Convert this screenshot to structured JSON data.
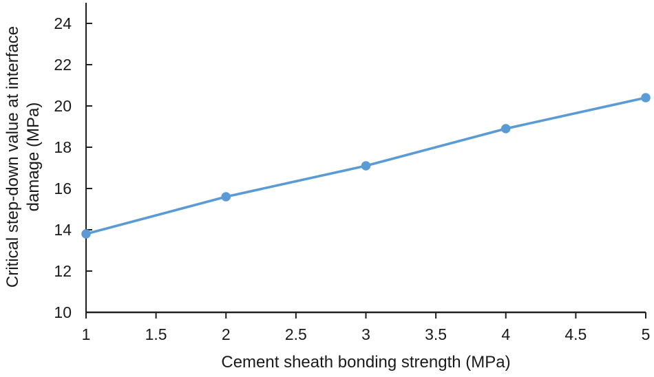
{
  "chart_data": {
    "type": "line",
    "title": "",
    "xlabel": "Cement sheath bonding strength (MPa)",
    "ylabel": "Critical step-down value at interface damage (MPa)",
    "ylabel_lines": [
      "Critical step-down value at interface",
      "damage (MPa)"
    ],
    "x": [
      1,
      2,
      3,
      4,
      5
    ],
    "series": [
      {
        "name": "Critical step-down value at interface damage",
        "values": [
          13.8,
          15.6,
          17.1,
          18.9,
          20.4
        ]
      }
    ],
    "xlim": [
      1,
      5
    ],
    "ylim": [
      10,
      25
    ],
    "x_ticks": [
      1,
      1.5,
      2,
      2.5,
      3,
      3.5,
      4,
      4.5,
      5
    ],
    "y_ticks": [
      10,
      12,
      14,
      16,
      18,
      20,
      22,
      24
    ],
    "grid": false,
    "legend_position": "none",
    "marker": "circle",
    "line_color": "#5b9bd5",
    "marker_color": "#5b9bd5",
    "axis_color": "#1f1f1f",
    "text_color": "#1a1a1a",
    "background_color": "#ffffff"
  }
}
